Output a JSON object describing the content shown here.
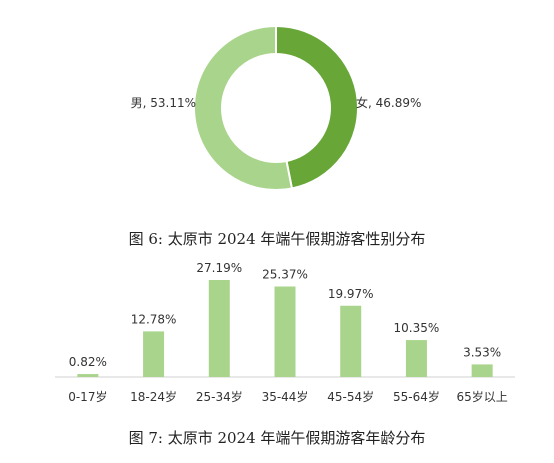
{
  "chart_data": [
    {
      "type": "pie",
      "style": "donut",
      "caption": "图 6:  太原市 2024 年端午假期游客性别分布",
      "slices": [
        {
          "name": "女",
          "value": 46.89,
          "label": "女, 46.89%",
          "color": "#67a637"
        },
        {
          "name": "男",
          "value": 53.11,
          "label": "男, 53.11%",
          "color": "#a9d48c"
        }
      ]
    },
    {
      "type": "bar",
      "caption": "图 7:  太原市 2024 年端午假期游客年龄分布",
      "categories": [
        "0-17岁",
        "18-24岁",
        "25-34岁",
        "35-44岁",
        "45-54岁",
        "55-64岁",
        "65岁以上"
      ],
      "values": [
        0.82,
        12.78,
        27.19,
        25.37,
        19.97,
        10.35,
        3.53
      ],
      "value_labels": [
        "0.82%",
        "12.78%",
        "27.19%",
        "25.37%",
        "19.97%",
        "10.35%",
        "3.53%"
      ],
      "bar_color": "#a9d48c",
      "ylim": [
        0,
        27.19
      ]
    }
  ]
}
